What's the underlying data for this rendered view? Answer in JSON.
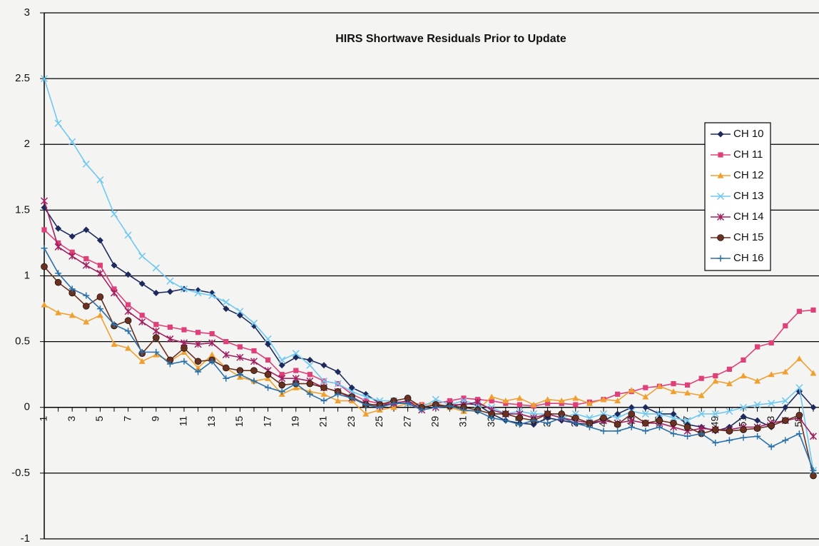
{
  "chart_data": {
    "type": "line",
    "title": "HIRS Shortwave Residuals Prior to Update",
    "categories": [
      "1",
      null,
      "3",
      null,
      "5",
      null,
      "7",
      null,
      "9",
      null,
      "11",
      null,
      "13",
      null,
      "15",
      null,
      "17",
      null,
      "19",
      null,
      "21",
      null,
      "23",
      null,
      "25",
      null,
      "27",
      null,
      "29",
      null,
      "31",
      null,
      "33",
      null,
      "35",
      null,
      "37",
      null,
      "39",
      null,
      "41",
      null,
      "43",
      null,
      "45",
      null,
      "47",
      null,
      "49",
      null,
      "51",
      null,
      "53",
      null,
      "55",
      null
    ],
    "ylim": [
      -1,
      3
    ],
    "yticks": [
      -1,
      -0.5,
      0,
      0.5,
      1,
      1.5,
      2,
      2.5,
      3
    ],
    "grid": true,
    "legend": "right",
    "series": [
      {
        "name": "CH 10",
        "color": "#1f2a5c",
        "marker": "diamond",
        "values": [
          1.52,
          1.36,
          1.3,
          1.35,
          1.27,
          1.08,
          1.01,
          0.94,
          0.87,
          0.88,
          0.9,
          0.89,
          0.87,
          0.75,
          0.7,
          0.62,
          0.48,
          0.32,
          0.38,
          0.36,
          0.32,
          0.27,
          0.15,
          0.1,
          0.03,
          0.02,
          0.05,
          0.0,
          0.02,
          0.0,
          0.03,
          0.02,
          -0.05,
          -0.1,
          -0.12,
          -0.13,
          -0.08,
          -0.1,
          -0.12,
          -0.13,
          -0.1,
          -0.05,
          0.0,
          0.0,
          -0.05,
          -0.05,
          -0.13,
          -0.15,
          -0.18,
          -0.15,
          -0.07,
          -0.1,
          -0.15,
          0.0,
          0.12,
          0.0
        ]
      },
      {
        "name": "CH 11",
        "color": "#e0407a",
        "marker": "square",
        "values": [
          1.35,
          1.25,
          1.18,
          1.13,
          1.08,
          0.9,
          0.78,
          0.7,
          0.63,
          0.61,
          0.59,
          0.57,
          0.56,
          0.5,
          0.46,
          0.43,
          0.36,
          0.25,
          0.28,
          0.25,
          0.2,
          0.18,
          0.1,
          0.05,
          0.03,
          0.03,
          0.04,
          0.02,
          0.03,
          0.05,
          0.07,
          0.06,
          0.05,
          0.03,
          0.02,
          0.01,
          0.03,
          0.03,
          0.02,
          0.04,
          0.06,
          0.1,
          0.12,
          0.15,
          0.16,
          0.18,
          0.17,
          0.22,
          0.24,
          0.29,
          0.36,
          0.46,
          0.49,
          0.62,
          0.73,
          0.74
        ]
      },
      {
        "name": "CH 12",
        "color": "#f0a030",
        "marker": "triangle",
        "values": [
          0.78,
          0.72,
          0.7,
          0.65,
          0.7,
          0.48,
          0.45,
          0.35,
          0.4,
          0.35,
          0.42,
          0.3,
          0.4,
          0.3,
          0.23,
          0.2,
          0.22,
          0.1,
          0.15,
          0.12,
          0.1,
          0.05,
          0.05,
          -0.05,
          -0.02,
          0.0,
          0.03,
          0.02,
          0.03,
          0.0,
          -0.03,
          -0.02,
          0.08,
          0.05,
          0.07,
          0.02,
          0.06,
          0.05,
          0.07,
          0.03,
          0.06,
          0.05,
          0.13,
          0.08,
          0.16,
          0.12,
          0.11,
          0.09,
          0.2,
          0.18,
          0.24,
          0.2,
          0.25,
          0.27,
          0.37,
          0.26
        ]
      },
      {
        "name": "CH 13",
        "color": "#70c8f0",
        "marker": "x",
        "values": [
          2.5,
          2.16,
          2.02,
          1.85,
          1.73,
          1.47,
          1.31,
          1.15,
          1.06,
          0.96,
          0.9,
          0.87,
          0.85,
          0.8,
          0.73,
          0.64,
          0.52,
          0.36,
          0.41,
          0.32,
          0.2,
          0.18,
          0.12,
          0.08,
          0.05,
          0.05,
          0.03,
          0.0,
          0.06,
          0.02,
          0.05,
          0.02,
          0.0,
          -0.05,
          -0.03,
          -0.05,
          -0.05,
          -0.08,
          -0.05,
          -0.08,
          -0.05,
          -0.08,
          -0.03,
          -0.05,
          -0.05,
          -0.08,
          -0.1,
          -0.05,
          -0.05,
          -0.03,
          0.0,
          0.02,
          0.03,
          0.05,
          0.15,
          -0.48
        ]
      },
      {
        "name": "CH 14",
        "color": "#a02060",
        "marker": "star",
        "values": [
          1.57,
          1.22,
          1.15,
          1.08,
          1.02,
          0.87,
          0.73,
          0.65,
          0.58,
          0.52,
          0.49,
          0.48,
          0.49,
          0.4,
          0.38,
          0.35,
          0.28,
          0.22,
          0.22,
          0.2,
          0.15,
          0.12,
          0.07,
          0.03,
          0.01,
          0.03,
          0.05,
          -0.02,
          0.0,
          0.02,
          0.02,
          0.04,
          -0.02,
          -0.05,
          -0.05,
          -0.08,
          -0.05,
          -0.08,
          -0.1,
          -0.12,
          -0.1,
          -0.12,
          -0.1,
          -0.12,
          -0.12,
          -0.15,
          -0.18,
          -0.16,
          -0.17,
          -0.17,
          -0.15,
          -0.15,
          -0.12,
          -0.1,
          -0.08,
          -0.22
        ]
      },
      {
        "name": "CH 15",
        "color": "#6a3020",
        "marker": "circle",
        "values": [
          1.07,
          0.95,
          0.87,
          0.77,
          0.84,
          0.62,
          0.66,
          0.41,
          0.53,
          0.36,
          0.45,
          0.35,
          0.36,
          0.3,
          0.28,
          0.28,
          0.25,
          0.17,
          0.18,
          0.18,
          0.15,
          0.12,
          0.08,
          0.02,
          0.02,
          0.05,
          0.07,
          0.0,
          0.02,
          0.01,
          0.0,
          -0.02,
          -0.05,
          -0.05,
          -0.08,
          -0.1,
          -0.05,
          -0.05,
          -0.08,
          -0.12,
          -0.08,
          -0.13,
          -0.05,
          -0.12,
          -0.1,
          -0.12,
          -0.15,
          -0.2,
          -0.17,
          -0.18,
          -0.17,
          -0.16,
          -0.14,
          -0.1,
          -0.06,
          -0.52
        ]
      },
      {
        "name": "CH 16",
        "color": "#2a70a8",
        "marker": "plus",
        "values": [
          1.21,
          1.02,
          0.9,
          0.85,
          0.75,
          0.63,
          0.58,
          0.42,
          0.42,
          0.33,
          0.35,
          0.27,
          0.35,
          0.22,
          0.25,
          0.2,
          0.15,
          0.12,
          0.18,
          0.1,
          0.05,
          0.1,
          0.07,
          0.02,
          0.0,
          0.03,
          0.03,
          -0.02,
          0.0,
          0.01,
          -0.02,
          -0.03,
          -0.08,
          -0.1,
          -0.13,
          -0.1,
          -0.12,
          -0.08,
          -0.12,
          -0.15,
          -0.18,
          -0.18,
          -0.15,
          -0.18,
          -0.15,
          -0.2,
          -0.22,
          -0.2,
          -0.27,
          -0.25,
          -0.23,
          -0.22,
          -0.3,
          -0.25,
          -0.2,
          -0.48
        ]
      }
    ]
  }
}
